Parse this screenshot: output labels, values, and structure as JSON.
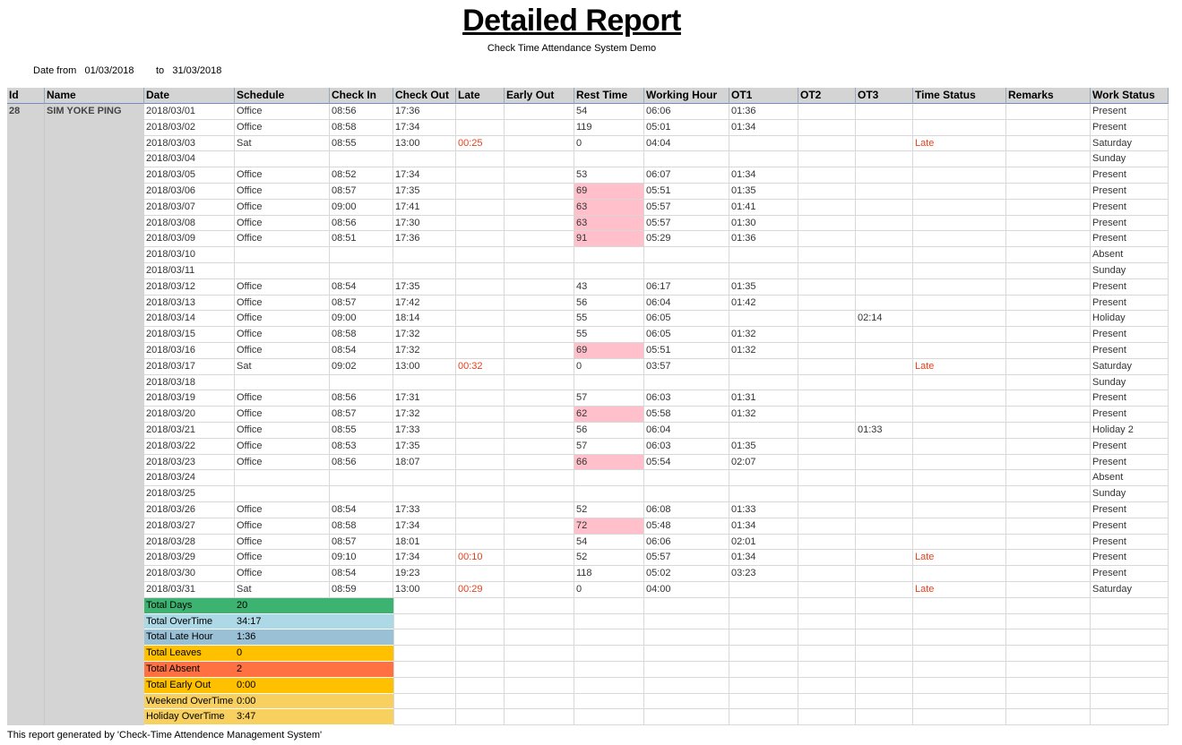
{
  "header": {
    "title": "Detailed Report",
    "subtitle": "Check Time Attendance System Demo",
    "date_from_label": "Date from",
    "date_from": "01/03/2018",
    "date_to_label": "to",
    "date_to": "31/03/2018"
  },
  "table": {
    "columns": [
      "Id",
      "Name",
      "Date",
      "Schedule",
      "Check In",
      "Check Out",
      "Late",
      "Early Out",
      "Rest Time",
      "Working Hour",
      "OT1",
      "OT2",
      "OT3",
      "Time Status",
      "Remarks",
      "Work Status"
    ],
    "employee_id": "28",
    "employee_name": "SIM YOKE PING",
    "rows": [
      [
        "2018/03/01",
        "Office",
        "08:56",
        "17:36",
        "",
        "",
        "54",
        "06:06",
        "01:36",
        "",
        "",
        "",
        "",
        "Present"
      ],
      [
        "2018/03/02",
        "Office",
        "08:58",
        "17:34",
        "",
        "",
        "119",
        "05:01",
        "01:34",
        "",
        "",
        "",
        "",
        "Present"
      ],
      [
        "2018/03/03",
        "Sat",
        "08:55",
        "13:00",
        "00:25",
        "",
        "0",
        "04:04",
        "",
        "",
        "",
        "Late",
        "",
        "Saturday"
      ],
      [
        "2018/03/04",
        "",
        "",
        "",
        "",
        "",
        "",
        "",
        "",
        "",
        "",
        "",
        "",
        "Sunday"
      ],
      [
        "2018/03/05",
        "Office",
        "08:52",
        "17:34",
        "",
        "",
        "53",
        "06:07",
        "01:34",
        "",
        "",
        "",
        "",
        "Present"
      ],
      [
        "2018/03/06",
        "Office",
        "08:57",
        "17:35",
        "",
        "",
        "69",
        "05:51",
        "01:35",
        "",
        "",
        "",
        "",
        "Present"
      ],
      [
        "2018/03/07",
        "Office",
        "09:00",
        "17:41",
        "",
        "",
        "63",
        "05:57",
        "01:41",
        "",
        "",
        "",
        "",
        "Present"
      ],
      [
        "2018/03/08",
        "Office",
        "08:56",
        "17:30",
        "",
        "",
        "63",
        "05:57",
        "01:30",
        "",
        "",
        "",
        "",
        "Present"
      ],
      [
        "2018/03/09",
        "Office",
        "08:51",
        "17:36",
        "",
        "",
        "91",
        "05:29",
        "01:36",
        "",
        "",
        "",
        "",
        "Present"
      ],
      [
        "2018/03/10",
        "",
        "",
        "",
        "",
        "",
        "",
        "",
        "",
        "",
        "",
        "",
        "",
        "Absent"
      ],
      [
        "2018/03/11",
        "",
        "",
        "",
        "",
        "",
        "",
        "",
        "",
        "",
        "",
        "",
        "",
        "Sunday"
      ],
      [
        "2018/03/12",
        "Office",
        "08:54",
        "17:35",
        "",
        "",
        "43",
        "06:17",
        "01:35",
        "",
        "",
        "",
        "",
        "Present"
      ],
      [
        "2018/03/13",
        "Office",
        "08:57",
        "17:42",
        "",
        "",
        "56",
        "06:04",
        "01:42",
        "",
        "",
        "",
        "",
        "Present"
      ],
      [
        "2018/03/14",
        "Office",
        "09:00",
        "18:14",
        "",
        "",
        "55",
        "06:05",
        "",
        "",
        "02:14",
        "",
        "",
        "Holiday"
      ],
      [
        "2018/03/15",
        "Office",
        "08:58",
        "17:32",
        "",
        "",
        "55",
        "06:05",
        "01:32",
        "",
        "",
        "",
        "",
        "Present"
      ],
      [
        "2018/03/16",
        "Office",
        "08:54",
        "17:32",
        "",
        "",
        "69",
        "05:51",
        "01:32",
        "",
        "",
        "",
        "",
        "Present"
      ],
      [
        "2018/03/17",
        "Sat",
        "09:02",
        "13:00",
        "00:32",
        "",
        "0",
        "03:57",
        "",
        "",
        "",
        "Late",
        "",
        "Saturday"
      ],
      [
        "2018/03/18",
        "",
        "",
        "",
        "",
        "",
        "",
        "",
        "",
        "",
        "",
        "",
        "",
        "Sunday"
      ],
      [
        "2018/03/19",
        "Office",
        "08:56",
        "17:31",
        "",
        "",
        "57",
        "06:03",
        "01:31",
        "",
        "",
        "",
        "",
        "Present"
      ],
      [
        "2018/03/20",
        "Office",
        "08:57",
        "17:32",
        "",
        "",
        "62",
        "05:58",
        "01:32",
        "",
        "",
        "",
        "",
        "Present"
      ],
      [
        "2018/03/21",
        "Office",
        "08:55",
        "17:33",
        "",
        "",
        "56",
        "06:04",
        "",
        "",
        "01:33",
        "",
        "",
        "Holiday 2"
      ],
      [
        "2018/03/22",
        "Office",
        "08:53",
        "17:35",
        "",
        "",
        "57",
        "06:03",
        "01:35",
        "",
        "",
        "",
        "",
        "Present"
      ],
      [
        "2018/03/23",
        "Office",
        "08:56",
        "18:07",
        "",
        "",
        "66",
        "05:54",
        "02:07",
        "",
        "",
        "",
        "",
        "Present"
      ],
      [
        "2018/03/24",
        "",
        "",
        "",
        "",
        "",
        "",
        "",
        "",
        "",
        "",
        "",
        "",
        "Absent"
      ],
      [
        "2018/03/25",
        "",
        "",
        "",
        "",
        "",
        "",
        "",
        "",
        "",
        "",
        "",
        "",
        "Sunday"
      ],
      [
        "2018/03/26",
        "Office",
        "08:54",
        "17:33",
        "",
        "",
        "52",
        "06:08",
        "01:33",
        "",
        "",
        "",
        "",
        "Present"
      ],
      [
        "2018/03/27",
        "Office",
        "08:58",
        "17:34",
        "",
        "",
        "72",
        "05:48",
        "01:34",
        "",
        "",
        "",
        "",
        "Present"
      ],
      [
        "2018/03/28",
        "Office",
        "08:57",
        "18:01",
        "",
        "",
        "54",
        "06:06",
        "02:01",
        "",
        "",
        "",
        "",
        "Present"
      ],
      [
        "2018/03/29",
        "Office",
        "09:10",
        "17:34",
        "00:10",
        "",
        "52",
        "05:57",
        "01:34",
        "",
        "",
        "Late",
        "",
        "Present"
      ],
      [
        "2018/03/30",
        "Office",
        "08:54",
        "19:23",
        "",
        "",
        "118",
        "05:02",
        "03:23",
        "",
        "",
        "",
        "",
        "Present"
      ],
      [
        "2018/03/31",
        "Sat",
        "08:59",
        "13:00",
        "00:29",
        "",
        "0",
        "04:00",
        "",
        "",
        "",
        "Late",
        "",
        "Saturday"
      ]
    ],
    "highlight_rest_rows": [
      5,
      6,
      7,
      8,
      15,
      19,
      22,
      26
    ],
    "blank_rows": 8
  },
  "summary": [
    {
      "label": "Total Days",
      "value": "20",
      "color": "#3cb371"
    },
    {
      "label": "Total OverTime",
      "value": "34:17",
      "color": "#add8e6"
    },
    {
      "label": "Total Late Hour",
      "value": "1:36",
      "color": "#9ac0d6"
    },
    {
      "label": "Total Leaves",
      "value": "0",
      "color": "#ffc000"
    },
    {
      "label": "Total Absent",
      "value": "2",
      "color": "#ff7043"
    },
    {
      "label": "Total Early Out",
      "value": "0:00",
      "color": "#ffc000"
    },
    {
      "label": "Weekend OverTime",
      "value": "0:00",
      "color": "#f7d060"
    },
    {
      "label": "Holiday OverTime",
      "value": "3:47",
      "color": "#f7d060"
    }
  ],
  "colors": {
    "late_text": "#e8401c",
    "rest_highlight": "#ffc0cb",
    "header_bg": "#d4d4d4",
    "id_name_bg": "#d4d4d4"
  },
  "footer": "This report generated by 'Check-Time Attendence Management System'"
}
